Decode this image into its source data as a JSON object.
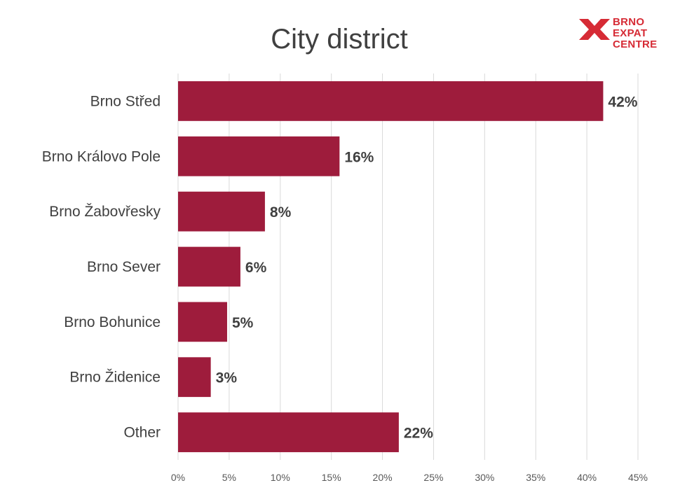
{
  "chart_data": {
    "type": "bar",
    "orientation": "horizontal",
    "title": "City district",
    "categories": [
      "Brno Střed",
      "Brno Královo Pole",
      "Brno Žabovřesky",
      "Brno Sever",
      "Brno Bohunice",
      "Brno Židenice",
      "Other"
    ],
    "values": [
      41.6,
      15.8,
      8.5,
      6.1,
      4.8,
      3.2,
      21.6
    ],
    "value_labels": [
      "42%",
      "16%",
      "8%",
      "6%",
      "5%",
      "3%",
      "22%"
    ],
    "xlim": [
      0,
      45
    ],
    "xticks": [
      0,
      5,
      10,
      15,
      20,
      25,
      30,
      35,
      40,
      45
    ],
    "xtick_labels": [
      "0%",
      "5%",
      "10%",
      "15%",
      "20%",
      "25%",
      "30%",
      "35%",
      "40%",
      "45%"
    ],
    "xlabel": "",
    "ylabel": "",
    "grid": "vertical",
    "bar_color": "#9e1c3c"
  },
  "logo": {
    "lines": [
      "BRNO",
      "EXPAT",
      "CENTRE"
    ],
    "color": "#d62b35"
  }
}
